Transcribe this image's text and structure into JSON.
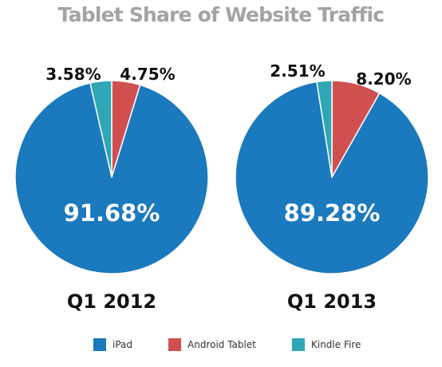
{
  "title": "Tablet Share of Website Traffic",
  "colors": {
    "iPad": "#1b79be",
    "Android Tablet": "#d0504f",
    "Kindle Fire": "#2ea6b6"
  },
  "chart_data": {
    "type": "pie",
    "title": "Tablet Share of Website Traffic",
    "categories": [
      "iPad",
      "Android Tablet",
      "Kindle Fire"
    ],
    "legend": {
      "position": "bottom",
      "entries": [
        "iPad",
        "Android Tablet",
        "Kindle Fire"
      ]
    },
    "pies": [
      {
        "label": "Q1 2012",
        "slices": [
          {
            "name": "iPad",
            "value": 91.68,
            "display": "91.68%"
          },
          {
            "name": "Android Tablet",
            "value": 4.75,
            "display": "4.75%"
          },
          {
            "name": "Kindle Fire",
            "value": 3.58,
            "display": "3.58%"
          }
        ]
      },
      {
        "label": "Q1 2013",
        "slices": [
          {
            "name": "iPad",
            "value": 89.28,
            "display": "89.28%"
          },
          {
            "name": "Android Tablet",
            "value": 8.2,
            "display": "8.20%"
          },
          {
            "name": "Kindle Fire",
            "value": 2.51,
            "display": "2.51%"
          }
        ]
      }
    ]
  }
}
